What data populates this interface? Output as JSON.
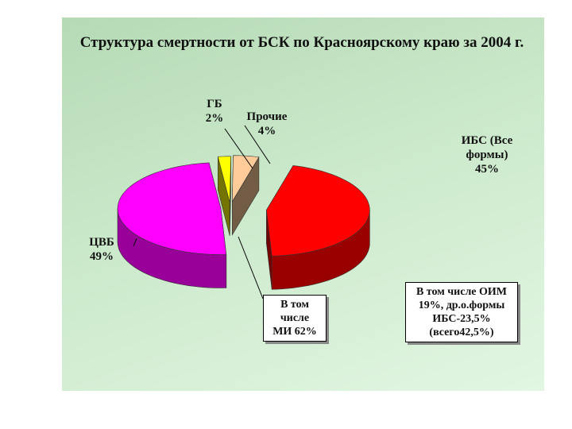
{
  "chart_data": {
    "type": "pie3d",
    "title": "Структура смертности от БСК по Красноярскому краю за 2004 г.",
    "categories": [
      "ИБС (Все формы)",
      "ЦВБ",
      "ГБ",
      "Прочие"
    ],
    "values": [
      45,
      49,
      2,
      4
    ],
    "value_labels": [
      "45%",
      "49%",
      "2%",
      "4%"
    ],
    "colors": [
      "#ff0000",
      "#ff00ff",
      "#ffff00",
      "#ffcc99"
    ],
    "annotations": [
      {
        "lines": [
          "В том",
          "числе",
          "МИ 62%"
        ]
      },
      {
        "lines": [
          "В том числе ОИМ",
          "19%, др.о.формы",
          "ИБС-23,5%",
          "(всего42,5%)"
        ]
      }
    ]
  }
}
